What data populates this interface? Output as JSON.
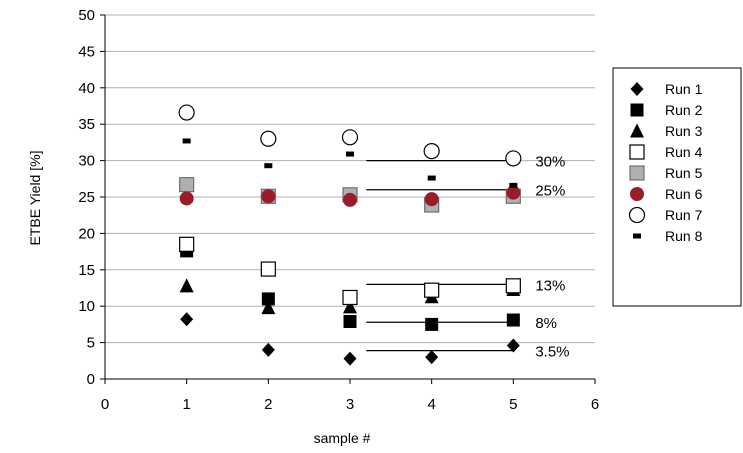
{
  "chart_data": {
    "type": "scatter",
    "xlabel": "sample #",
    "ylabel": "ETBE Yield [%]",
    "xlim": [
      0,
      6
    ],
    "ylim": [
      0,
      50
    ],
    "xticks": [
      0,
      1,
      2,
      3,
      4,
      5,
      6
    ],
    "yticks": [
      0,
      5,
      10,
      15,
      20,
      25,
      30,
      35,
      40,
      45,
      50
    ],
    "grid": "horizontal",
    "legend_position": "right",
    "series": [
      {
        "name": "Run 1",
        "marker": "diamond",
        "color": "#000000",
        "points": [
          [
            1,
            8.2
          ],
          [
            2,
            4.0
          ],
          [
            3,
            2.8
          ],
          [
            4,
            3.0
          ],
          [
            5,
            4.6
          ]
        ]
      },
      {
        "name": "Run 2",
        "marker": "square",
        "color": "#000000",
        "points": [
          [
            1,
            17.6
          ],
          [
            2,
            11.0
          ],
          [
            3,
            7.9
          ],
          [
            4,
            7.5
          ],
          [
            5,
            8.1
          ]
        ]
      },
      {
        "name": "Run 3",
        "marker": "triangle",
        "color": "#000000",
        "points": [
          [
            1,
            12.8
          ],
          [
            2,
            9.8
          ],
          [
            3,
            9.9
          ],
          [
            4,
            11.3
          ],
          [
            5,
            12.3
          ]
        ]
      },
      {
        "name": "Run 4",
        "marker": "square-open",
        "color": "#000000",
        "points": [
          [
            1,
            18.5
          ],
          [
            2,
            15.1
          ],
          [
            3,
            11.2
          ],
          [
            4,
            12.2
          ],
          [
            5,
            12.8
          ]
        ]
      },
      {
        "name": "Run 5",
        "marker": "square-gray",
        "color": "#b0b0b0",
        "points": [
          [
            1,
            26.7
          ],
          [
            2,
            25.1
          ],
          [
            3,
            25.3
          ],
          [
            4,
            23.9
          ],
          [
            5,
            25.1
          ]
        ]
      },
      {
        "name": "Run 6",
        "marker": "circle-filled",
        "color": "#9b1b2a",
        "points": [
          [
            1,
            24.8
          ],
          [
            2,
            25.1
          ],
          [
            3,
            24.6
          ],
          [
            4,
            24.7
          ],
          [
            5,
            25.6
          ]
        ]
      },
      {
        "name": "Run 7",
        "marker": "circle-open",
        "color": "#000000",
        "points": [
          [
            1,
            36.6
          ],
          [
            2,
            33.0
          ],
          [
            3,
            33.2
          ],
          [
            4,
            31.3
          ],
          [
            5,
            30.3
          ]
        ]
      },
      {
        "name": "Run 8",
        "marker": "dash",
        "color": "#000000",
        "points": [
          [
            1,
            32.7
          ],
          [
            2,
            29.3
          ],
          [
            3,
            30.9
          ],
          [
            4,
            27.6
          ],
          [
            5,
            26.6
          ]
        ]
      }
    ],
    "annotations": [
      {
        "label": "30%",
        "y": 30,
        "x_from": 3.2,
        "x_to": 5.0
      },
      {
        "label": "25%",
        "y": 26,
        "x_from": 3.2,
        "x_to": 5.0
      },
      {
        "label": "13%",
        "y": 13,
        "x_from": 3.2,
        "x_to": 5.0
      },
      {
        "label": "8%",
        "y": 7.8,
        "x_from": 3.2,
        "x_to": 5.0
      },
      {
        "label": "3.5%",
        "y": 3.9,
        "x_from": 3.2,
        "x_to": 5.0
      }
    ]
  }
}
